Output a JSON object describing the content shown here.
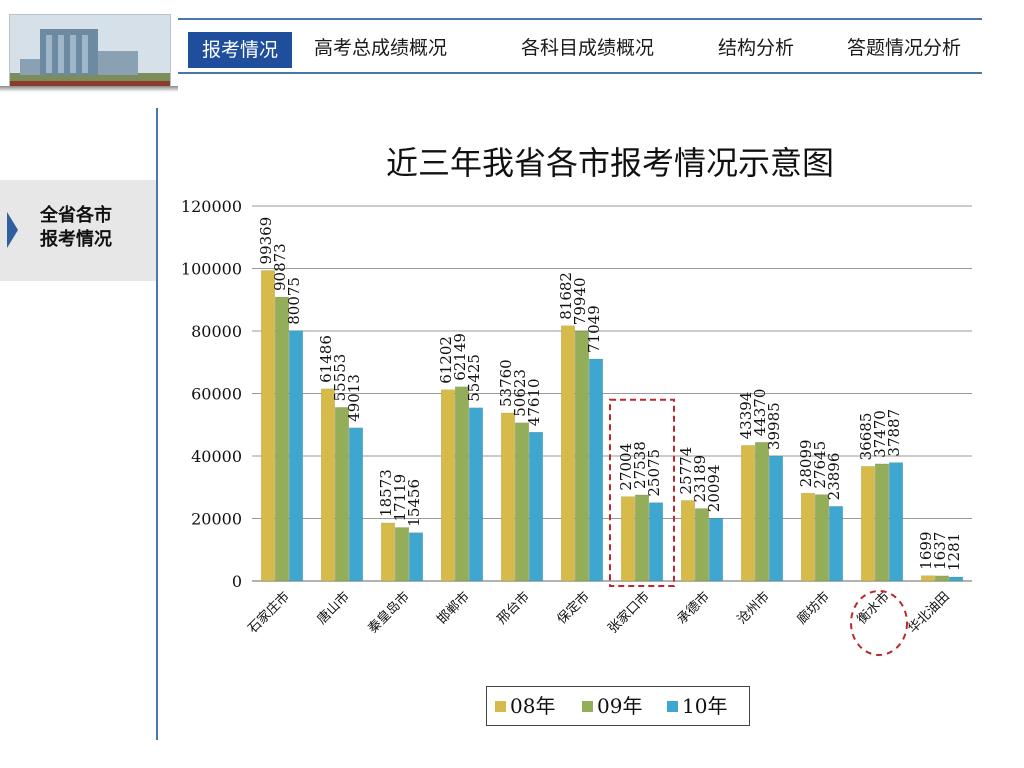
{
  "tabs": [
    {
      "label": "报考情况",
      "active": true
    },
    {
      "label": "高考总成绩概况",
      "active": false
    },
    {
      "label": "各科目成绩概况",
      "active": false
    },
    {
      "label": "结构分析",
      "active": false
    },
    {
      "label": "答题情况分析",
      "active": false
    }
  ],
  "sidebar": {
    "items": [
      {
        "label_line1": "全省各市",
        "label_line2": "报考情况",
        "selected": true
      }
    ]
  },
  "colors": {
    "accent": "#1f4e9c",
    "series_08": "#d6bb4a",
    "series_09": "#93ad58",
    "series_10": "#3fa7cf",
    "highlight": "#c0272d"
  },
  "chart_data": {
    "type": "bar",
    "title": "近三年我省各市报考情况示意图",
    "categories": [
      "石家庄市",
      "唐山市",
      "秦皇岛市",
      "邯郸市",
      "邢台市",
      "保定市",
      "张家口市",
      "承德市",
      "沧州市",
      "廊坊市",
      "衡水市",
      "华北油田"
    ],
    "series": [
      {
        "name": "08年",
        "values": [
          99369,
          61486,
          18573,
          61202,
          53760,
          81682,
          27004,
          25774,
          43394,
          28099,
          36685,
          1699
        ]
      },
      {
        "name": "09年",
        "values": [
          90873,
          55553,
          17119,
          62149,
          50623,
          79940,
          27538,
          23189,
          44370,
          27645,
          37470,
          1637
        ]
      },
      {
        "name": "10年",
        "values": [
          80075,
          49013,
          15456,
          55425,
          47610,
          71049,
          25075,
          20094,
          39985,
          23896,
          37887,
          1281
        ]
      }
    ],
    "yticks": [
      "0",
      "20000",
      "40000",
      "60000",
      "80000",
      "100000",
      "120000"
    ],
    "ylim": [
      0,
      120000
    ],
    "grid": true,
    "legend_position": "bottom",
    "highlighted_categories": [
      "张家口市",
      "衡水市"
    ]
  }
}
